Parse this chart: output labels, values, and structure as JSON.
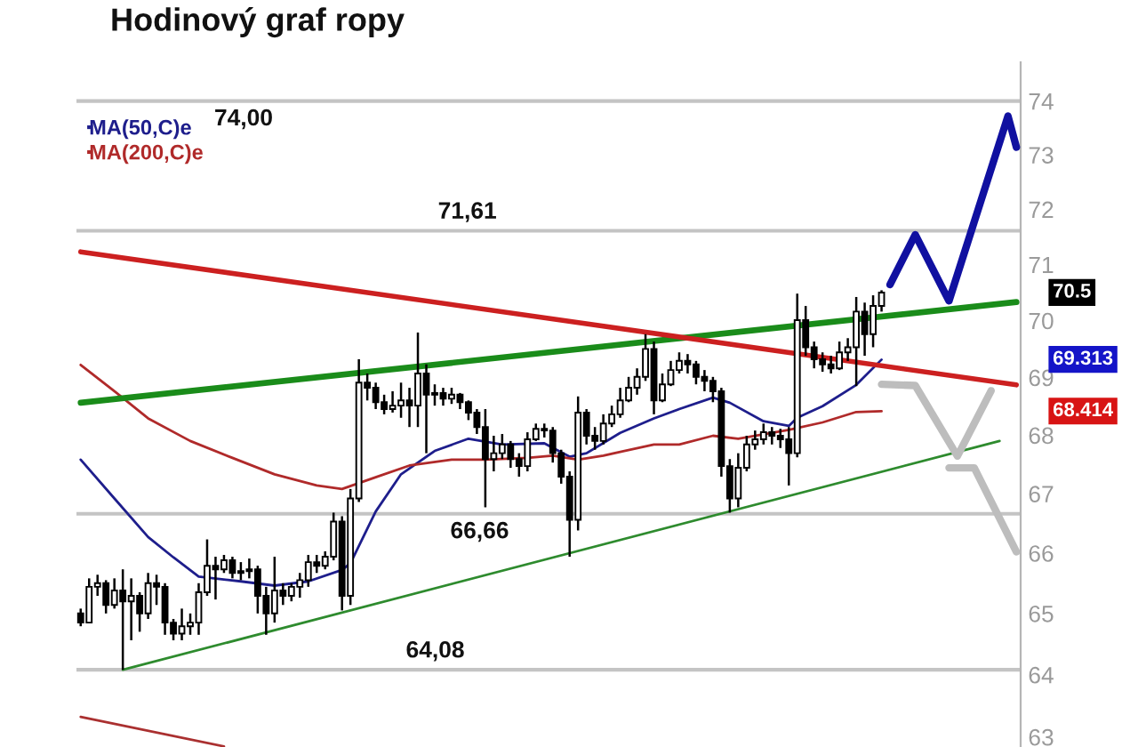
{
  "chart_data": {
    "type": "candlestick",
    "title": "Hodinový graf ropy",
    "color": "#000000",
    "categories": [
      null,
      null,
      null,
      null,
      null,
      null,
      null,
      null,
      null,
      null,
      null,
      null,
      null,
      null,
      null,
      null,
      null,
      null,
      null,
      null,
      null,
      null,
      null,
      null,
      null,
      null,
      null,
      null,
      null,
      null,
      null,
      null,
      null,
      null,
      null,
      null,
      null,
      null,
      null,
      null,
      null,
      null,
      null,
      null,
      null,
      null,
      null,
      null,
      null,
      null,
      null,
      null,
      null,
      null,
      null,
      null,
      null,
      null,
      null,
      null,
      null,
      null,
      null,
      null,
      null,
      null,
      null,
      null,
      null,
      null,
      null,
      null,
      null,
      null,
      null,
      null,
      null,
      null,
      null,
      null,
      null,
      null,
      null,
      null,
      null,
      null,
      null,
      null,
      null,
      null,
      null,
      null,
      null,
      null,
      null,
      null,
      null,
      null,
      null,
      null,
      null,
      null,
      null,
      null,
      null,
      null,
      null,
      null,
      null,
      null,
      null,
      null
    ],
    "ohlc": [
      [
        65.0,
        65.08,
        64.79,
        64.85
      ],
      [
        64.85,
        65.58,
        64.85,
        65.44
      ],
      [
        65.44,
        65.64,
        65.29,
        65.5
      ],
      [
        65.5,
        65.55,
        65.0,
        65.14
      ],
      [
        65.14,
        65.58,
        65.08,
        65.38
      ],
      [
        65.38,
        65.73,
        64.08,
        65.2
      ],
      [
        65.2,
        65.58,
        64.56,
        65.29
      ],
      [
        65.29,
        65.35,
        64.7,
        65.0
      ],
      [
        65.0,
        65.67,
        64.91,
        65.5
      ],
      [
        65.5,
        65.64,
        65.14,
        65.44
      ],
      [
        65.44,
        65.5,
        64.65,
        64.85
      ],
      [
        64.85,
        64.91,
        64.56,
        64.67
      ],
      [
        64.67,
        65.08,
        64.56,
        64.79
      ],
      [
        64.79,
        65.0,
        64.65,
        64.85
      ],
      [
        64.85,
        65.5,
        64.65,
        65.35
      ],
      [
        65.35,
        66.23,
        65.29,
        65.79
      ],
      [
        65.79,
        65.94,
        65.23,
        65.73
      ],
      [
        65.73,
        65.97,
        65.67,
        65.88
      ],
      [
        65.88,
        65.94,
        65.58,
        65.67
      ],
      [
        65.67,
        65.85,
        65.55,
        65.7
      ],
      [
        65.7,
        65.91,
        65.58,
        65.73
      ],
      [
        65.73,
        65.79,
        65.0,
        65.29
      ],
      [
        65.29,
        65.44,
        64.65,
        65.0
      ],
      [
        65.0,
        65.94,
        64.85,
        65.38
      ],
      [
        65.38,
        65.5,
        65.14,
        65.29
      ],
      [
        65.29,
        65.5,
        65.2,
        65.44
      ],
      [
        65.44,
        65.67,
        65.26,
        65.55
      ],
      [
        65.55,
        65.97,
        65.44,
        65.85
      ],
      [
        65.85,
        65.97,
        65.67,
        65.79
      ],
      [
        65.79,
        66.03,
        65.73,
        65.94
      ],
      [
        65.94,
        66.68,
        65.88,
        66.53
      ],
      [
        66.53,
        66.62,
        65.05,
        65.29
      ],
      [
        65.29,
        67.08,
        65.14,
        66.92
      ],
      [
        66.92,
        69.32,
        66.86,
        68.91
      ],
      [
        68.91,
        69.07,
        68.6,
        68.82
      ],
      [
        68.82,
        68.91,
        68.45,
        68.57
      ],
      [
        68.57,
        68.7,
        68.36,
        68.45
      ],
      [
        68.45,
        68.76,
        68.39,
        68.51
      ],
      [
        68.51,
        68.91,
        68.3,
        68.6
      ],
      [
        68.6,
        68.82,
        68.14,
        68.51
      ],
      [
        68.51,
        69.79,
        68.14,
        69.07
      ],
      [
        69.07,
        69.23,
        67.69,
        68.7
      ],
      [
        68.7,
        68.88,
        68.51,
        68.73
      ],
      [
        68.73,
        68.82,
        68.51,
        68.63
      ],
      [
        68.63,
        68.82,
        68.54,
        68.7
      ],
      [
        68.7,
        68.73,
        68.45,
        68.57
      ],
      [
        68.57,
        68.6,
        68.26,
        68.39
      ],
      [
        68.39,
        68.45,
        68.02,
        68.14
      ],
      [
        68.14,
        68.45,
        66.77,
        67.59
      ],
      [
        67.59,
        67.99,
        67.38,
        67.69
      ],
      [
        67.69,
        68.02,
        67.59,
        67.84
      ],
      [
        67.84,
        67.9,
        67.44,
        67.59
      ],
      [
        67.59,
        67.69,
        67.29,
        67.47
      ],
      [
        67.47,
        68.05,
        67.38,
        67.93
      ],
      [
        67.93,
        68.2,
        67.9,
        68.11
      ],
      [
        68.11,
        68.2,
        67.96,
        68.08
      ],
      [
        68.08,
        68.14,
        67.53,
        67.69
      ],
      [
        67.69,
        67.75,
        67.17,
        67.29
      ],
      [
        67.29,
        67.38,
        65.94,
        66.56
      ],
      [
        66.56,
        68.67,
        66.38,
        68.39
      ],
      [
        68.39,
        68.45,
        67.84,
        67.99
      ],
      [
        67.99,
        68.14,
        67.75,
        67.9
      ],
      [
        67.9,
        68.36,
        67.84,
        68.2
      ],
      [
        68.2,
        68.51,
        68.14,
        68.36
      ],
      [
        68.36,
        68.82,
        68.3,
        68.6
      ],
      [
        68.6,
        69.01,
        68.57,
        68.82
      ],
      [
        68.82,
        69.16,
        68.7,
        69.01
      ],
      [
        69.01,
        69.76,
        68.94,
        69.5
      ],
      [
        69.5,
        69.63,
        68.36,
        68.6
      ],
      [
        68.6,
        69.07,
        68.57,
        68.88
      ],
      [
        68.88,
        69.29,
        68.85,
        69.13
      ],
      [
        69.13,
        69.44,
        69.07,
        69.29
      ],
      [
        69.29,
        69.41,
        69.07,
        69.23
      ],
      [
        69.23,
        69.29,
        68.88,
        69.01
      ],
      [
        69.01,
        69.13,
        68.76,
        68.94
      ],
      [
        68.94,
        69.01,
        68.57,
        68.76
      ],
      [
        68.76,
        68.82,
        67.29,
        67.47
      ],
      [
        67.47,
        67.59,
        66.68,
        66.92
      ],
      [
        66.92,
        67.69,
        66.77,
        67.44
      ],
      [
        67.44,
        67.99,
        67.38,
        67.84
      ],
      [
        67.84,
        68.08,
        67.75,
        67.93
      ],
      [
        67.93,
        68.2,
        67.84,
        68.05
      ],
      [
        68.05,
        68.14,
        67.84,
        67.99
      ],
      [
        67.99,
        68.11,
        67.78,
        67.93
      ],
      [
        67.93,
        68.14,
        67.14,
        67.69
      ],
      [
        67.69,
        70.48,
        67.62,
        70.01
      ],
      [
        70.01,
        70.26,
        69.38,
        69.53
      ],
      [
        69.53,
        69.63,
        69.16,
        69.32
      ],
      [
        69.32,
        69.44,
        69.1,
        69.23
      ],
      [
        69.23,
        69.38,
        69.07,
        69.16
      ],
      [
        69.16,
        69.63,
        69.13,
        69.44
      ],
      [
        69.44,
        69.69,
        69.29,
        69.53
      ],
      [
        69.53,
        70.42,
        68.85,
        70.16
      ],
      [
        70.16,
        70.32,
        69.38,
        69.76
      ],
      [
        69.76,
        70.45,
        69.53,
        70.26
      ],
      [
        70.26,
        70.54,
        70.16,
        70.5
      ],
      null,
      null,
      null,
      null,
      null,
      null,
      null,
      null,
      null,
      null,
      null,
      null,
      null,
      null,
      null,
      null
    ],
    "series": [
      {
        "name": "MA(50,C)e",
        "type": "line",
        "color": "#1e1e8c",
        "values": [
          67.58,
          null,
          null,
          null,
          66.92,
          null,
          null,
          null,
          66.27,
          null,
          null,
          65.93,
          null,
          null,
          65.61,
          null,
          null,
          null,
          null,
          65.53,
          null,
          null,
          null,
          65.46,
          null,
          null,
          null,
          65.53,
          null,
          null,
          null,
          65.72,
          65.83,
          null,
          null,
          66.7,
          null,
          null,
          67.33,
          null,
          null,
          null,
          67.73,
          null,
          null,
          null,
          67.94,
          null,
          null,
          null,
          67.84,
          null,
          null,
          null,
          null,
          67.86,
          null,
          null,
          67.63,
          null,
          67.69,
          null,
          null,
          null,
          68.04,
          null,
          null,
          null,
          68.29,
          null,
          null,
          68.45,
          null,
          null,
          null,
          68.65,
          null,
          68.56,
          null,
          null,
          null,
          68.24,
          null,
          null,
          68.16,
          68.3,
          null,
          null,
          68.5,
          null,
          null,
          null,
          68.87,
          null,
          null,
          69.313,
          null,
          null,
          null,
          null,
          null,
          null,
          null,
          null,
          null,
          null,
          null,
          null,
          null,
          null,
          null,
          null
        ]
      },
      {
        "name": "MA(200,C)e",
        "type": "line",
        "color": "#b02a2a",
        "values": [
          69.22,
          null,
          null,
          null,
          68.76,
          null,
          null,
          null,
          68.29,
          null,
          null,
          null,
          null,
          67.9,
          null,
          null,
          null,
          null,
          67.61,
          null,
          null,
          null,
          null,
          67.33,
          null,
          null,
          null,
          null,
          67.14,
          null,
          null,
          67.08,
          null,
          null,
          null,
          67.28,
          null,
          null,
          null,
          67.48,
          null,
          null,
          null,
          null,
          67.58,
          null,
          null,
          null,
          67.58,
          null,
          null,
          null,
          null,
          67.61,
          null,
          null,
          67.65,
          null,
          null,
          67.58,
          null,
          null,
          67.65,
          null,
          null,
          null,
          null,
          null,
          67.84,
          null,
          null,
          67.84,
          null,
          null,
          null,
          67.99,
          null,
          null,
          67.94,
          null,
          null,
          null,
          null,
          null,
          68.09,
          null,
          null,
          null,
          68.22,
          null,
          null,
          null,
          68.4,
          null,
          null,
          68.414,
          null,
          null,
          null,
          null,
          null,
          null,
          null,
          null,
          null,
          null,
          null,
          null,
          null,
          null,
          null,
          null
        ]
      },
      {
        "type": "line",
        "color": "#1a8c1a",
        "values": [
          68.56,
          null,
          null,
          null,
          null,
          null,
          null,
          null,
          null,
          null,
          null,
          null,
          null,
          null,
          null,
          null,
          null,
          null,
          null,
          null,
          null,
          null,
          null,
          null,
          null,
          null,
          null,
          null,
          null,
          null,
          null,
          null,
          null,
          null,
          null,
          null,
          null,
          null,
          null,
          null,
          null,
          null,
          null,
          null,
          null,
          null,
          null,
          null,
          null,
          null,
          null,
          null,
          null,
          null,
          null,
          null,
          null,
          null,
          null,
          null,
          null,
          null,
          null,
          null,
          null,
          null,
          null,
          null,
          null,
          null,
          null,
          null,
          null,
          null,
          null,
          null,
          null,
          null,
          null,
          null,
          null,
          null,
          null,
          null,
          null,
          null,
          null,
          null,
          null,
          null,
          null,
          null,
          null,
          null,
          null,
          null,
          null,
          null,
          null,
          null,
          null,
          null,
          null,
          null,
          null,
          null,
          null,
          null,
          null,
          null,
          null,
          70.33
        ]
      },
      {
        "type": "line",
        "color": "#cc2020",
        "values": [
          71.23,
          null,
          null,
          null,
          null,
          null,
          null,
          null,
          null,
          null,
          null,
          null,
          null,
          null,
          null,
          null,
          null,
          null,
          null,
          null,
          null,
          null,
          null,
          null,
          null,
          null,
          null,
          null,
          null,
          null,
          null,
          null,
          null,
          null,
          null,
          null,
          null,
          null,
          null,
          null,
          null,
          null,
          null,
          null,
          null,
          null,
          null,
          null,
          null,
          null,
          null,
          null,
          null,
          null,
          null,
          null,
          null,
          null,
          null,
          null,
          null,
          null,
          null,
          null,
          null,
          null,
          null,
          null,
          null,
          null,
          null,
          null,
          null,
          null,
          null,
          null,
          null,
          null,
          null,
          null,
          null,
          null,
          null,
          null,
          null,
          null,
          null,
          null,
          null,
          null,
          null,
          null,
          null,
          null,
          null,
          null,
          null,
          null,
          null,
          null,
          null,
          null,
          null,
          null,
          null,
          null,
          null,
          null,
          null,
          null,
          null,
          68.87
        ]
      },
      {
        "type": "line",
        "color": "#2e8b2e",
        "values": [
          null,
          null,
          null,
          null,
          null,
          64.08,
          null,
          null,
          null,
          null,
          null,
          null,
          null,
          null,
          null,
          null,
          null,
          null,
          null,
          null,
          null,
          null,
          null,
          null,
          null,
          null,
          null,
          null,
          null,
          null,
          null,
          null,
          null,
          null,
          null,
          null,
          null,
          null,
          null,
          null,
          null,
          null,
          null,
          null,
          null,
          null,
          null,
          null,
          null,
          null,
          null,
          null,
          null,
          null,
          null,
          null,
          null,
          null,
          null,
          null,
          null,
          null,
          null,
          null,
          null,
          null,
          null,
          null,
          null,
          null,
          null,
          null,
          null,
          null,
          null,
          null,
          null,
          null,
          null,
          null,
          null,
          null,
          null,
          null,
          null,
          null,
          null,
          null,
          null,
          null,
          null,
          null,
          null,
          null,
          null,
          null,
          null,
          null,
          null,
          null,
          null,
          null,
          null,
          null,
          null,
          null,
          null,
          null,
          null,
          67.9,
          null,
          null
        ]
      },
      {
        "type": "line",
        "color": "#aa3030",
        "values": [
          63.32,
          null,
          null,
          null,
          null,
          null,
          null,
          null,
          null,
          null,
          null,
          null,
          null,
          null,
          null,
          null,
          null,
          62.85,
          null,
          null,
          null,
          null,
          null,
          null,
          null,
          null,
          null,
          null,
          null,
          null,
          null,
          null,
          null,
          null,
          null,
          null,
          null,
          null,
          null,
          null,
          null,
          null,
          null,
          null,
          null,
          null,
          null,
          null,
          null,
          null,
          null,
          null,
          null,
          null,
          null,
          null,
          null,
          null,
          null,
          null,
          null,
          null,
          null,
          null,
          null,
          null,
          null,
          null,
          null,
          null,
          null,
          null,
          null,
          null,
          null,
          null,
          null,
          null,
          null,
          null,
          null,
          null,
          null,
          null,
          null,
          null,
          null,
          null,
          null,
          null,
          null,
          null,
          null,
          null,
          null,
          null,
          null,
          null,
          null,
          null,
          null,
          null,
          null,
          null,
          null,
          null,
          null,
          null,
          null,
          null,
          null,
          null
        ]
      },
      {
        "type": "line",
        "color": "#1010a0",
        "values": [
          null,
          null,
          null,
          null,
          null,
          null,
          null,
          null,
          null,
          null,
          null,
          null,
          null,
          null,
          null,
          null,
          null,
          null,
          null,
          null,
          null,
          null,
          null,
          null,
          null,
          null,
          null,
          null,
          null,
          null,
          null,
          null,
          null,
          null,
          null,
          null,
          null,
          null,
          null,
          null,
          null,
          null,
          null,
          null,
          null,
          null,
          null,
          null,
          null,
          null,
          null,
          null,
          null,
          null,
          null,
          null,
          null,
          null,
          null,
          null,
          null,
          null,
          null,
          null,
          null,
          null,
          null,
          null,
          null,
          null,
          null,
          null,
          null,
          null,
          null,
          null,
          null,
          null,
          null,
          null,
          null,
          null,
          null,
          null,
          null,
          null,
          null,
          null,
          null,
          null,
          null,
          null,
          null,
          null,
          null,
          null,
          70.64,
          null,
          null,
          71.54,
          null,
          null,
          null,
          70.35,
          null,
          null,
          null,
          null,
          null,
          null,
          73.72,
          73.14
        ]
      },
      {
        "type": "line",
        "color": "#bdbdbd",
        "values": [
          null,
          null,
          null,
          null,
          null,
          null,
          null,
          null,
          null,
          null,
          null,
          null,
          null,
          null,
          null,
          null,
          null,
          null,
          null,
          null,
          null,
          null,
          null,
          null,
          null,
          null,
          null,
          null,
          null,
          null,
          null,
          null,
          null,
          null,
          null,
          null,
          null,
          null,
          null,
          null,
          null,
          null,
          null,
          null,
          null,
          null,
          null,
          null,
          null,
          null,
          null,
          null,
          null,
          null,
          null,
          null,
          null,
          null,
          null,
          null,
          null,
          null,
          null,
          null,
          null,
          null,
          null,
          null,
          null,
          null,
          null,
          null,
          null,
          null,
          null,
          null,
          null,
          null,
          null,
          null,
          null,
          null,
          null,
          null,
          null,
          null,
          null,
          null,
          null,
          null,
          null,
          null,
          null,
          null,
          null,
          68.88,
          null,
          null,
          null,
          68.86,
          null,
          null,
          null,
          null,
          67.64,
          null,
          null,
          null,
          68.77,
          null,
          null,
          null
        ]
      },
      {
        "type": "line",
        "color": "#bdbdbd",
        "values": [
          null,
          null,
          null,
          null,
          null,
          null,
          null,
          null,
          null,
          null,
          null,
          null,
          null,
          null,
          null,
          null,
          null,
          null,
          null,
          null,
          null,
          null,
          null,
          null,
          null,
          null,
          null,
          null,
          null,
          null,
          null,
          null,
          null,
          null,
          null,
          null,
          null,
          null,
          null,
          null,
          null,
          null,
          null,
          null,
          null,
          null,
          null,
          null,
          null,
          null,
          null,
          null,
          null,
          null,
          null,
          null,
          null,
          null,
          null,
          null,
          null,
          null,
          null,
          null,
          null,
          null,
          null,
          null,
          null,
          null,
          null,
          null,
          null,
          null,
          null,
          null,
          null,
          null,
          null,
          null,
          null,
          null,
          null,
          null,
          null,
          null,
          null,
          null,
          null,
          null,
          null,
          null,
          null,
          null,
          null,
          null,
          null,
          null,
          null,
          null,
          null,
          null,
          null,
          67.44,
          null,
          null,
          67.44,
          null,
          null,
          null,
          null,
          66.02
        ]
      }
    ],
    "annotations": [
      "70.5",
      "69.313",
      "68.414"
    ],
    "ref_lines": [
      {
        "axis": "y",
        "value": 74.0,
        "label": "74,00",
        "color": "#c4c4c4"
      },
      {
        "axis": "y",
        "value": 71.61,
        "label": "71,61",
        "color": "#c4c4c4"
      },
      {
        "axis": "y",
        "value": 66.66,
        "label": "66,66",
        "color": "#c4c4c4"
      },
      {
        "axis": "y",
        "value": 64.08,
        "label": "64,08",
        "color": "#c4c4c4"
      }
    ],
    "ylim": [
      62.84,
      74.73
    ],
    "yticks": [
      63,
      64,
      65,
      66,
      67,
      68,
      69,
      70,
      71,
      72,
      73,
      74
    ],
    "log": true,
    "legend": "top left",
    "tick_labels": "y"
  }
}
